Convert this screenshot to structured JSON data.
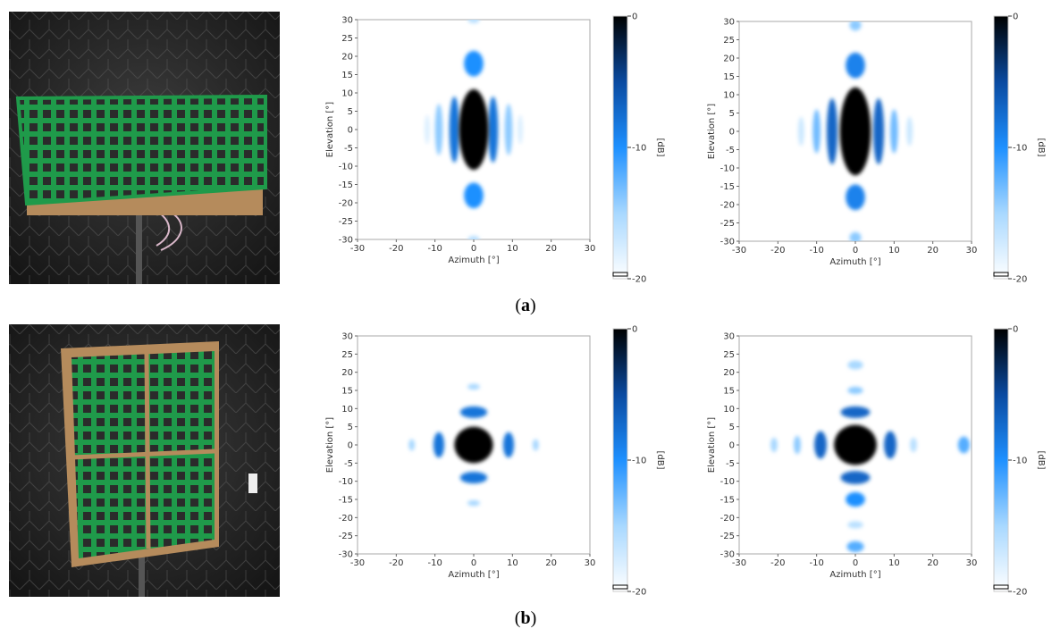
{
  "chart_data": [
    {
      "type": "heatmap",
      "xlabel": "Azimuth [°]",
      "ylabel": "Elevation [°]",
      "xlim": [
        -30,
        30
      ],
      "ylim": [
        -30,
        30
      ],
      "xticks": [
        -30,
        -20,
        -10,
        0,
        10,
        20,
        30
      ],
      "yticks": [
        -30,
        -25,
        -20,
        -15,
        -10,
        -5,
        0,
        5,
        10,
        15,
        20,
        25,
        30
      ],
      "clim": [
        -20,
        0
      ],
      "cticks": [
        0,
        -10,
        -20
      ],
      "clabel": "[dB]",
      "colormap": [
        "#ffffff",
        "#a8d8ff",
        "#1e90ff",
        "#0a4aa0",
        "#000000"
      ],
      "lobes": [
        {
          "x": 0,
          "y": 30,
          "sx": 1.5,
          "sy": 1,
          "value": -16
        },
        {
          "x": 0,
          "y": -30,
          "sx": 1.5,
          "sy": 1,
          "value": -16
        },
        {
          "x": -12,
          "y": 0,
          "sx": 0.7,
          "sy": 4,
          "value": -18
        },
        {
          "x": 12,
          "y": 0,
          "sx": 0.7,
          "sy": 4,
          "value": -18
        },
        {
          "x": -9,
          "y": 0,
          "sx": 1,
          "sy": 7,
          "value": -14
        },
        {
          "x": 9,
          "y": 0,
          "sx": 1,
          "sy": 7,
          "value": -14
        },
        {
          "x": 0,
          "y": 18,
          "sx": 2.5,
          "sy": 3.5,
          "value": -10
        },
        {
          "x": 0,
          "y": -18,
          "sx": 2.5,
          "sy": 3.5,
          "value": -10
        },
        {
          "x": -5,
          "y": 0,
          "sx": 1.3,
          "sy": 9,
          "value": -8
        },
        {
          "x": 5,
          "y": 0,
          "sx": 1.3,
          "sy": 9,
          "value": -8
        },
        {
          "x": 0,
          "y": 0,
          "sx": 3.8,
          "sy": 11,
          "value": 0
        }
      ]
    },
    {
      "type": "heatmap",
      "xlabel": "Azimuth [°]",
      "ylabel": "Elevation [°]",
      "xlim": [
        -30,
        30
      ],
      "ylim": [
        -30,
        30
      ],
      "xticks": [
        -30,
        -20,
        -10,
        0,
        10,
        20,
        30
      ],
      "yticks": [
        -30,
        -25,
        -20,
        -15,
        -10,
        -5,
        0,
        5,
        10,
        15,
        20,
        25,
        30
      ],
      "clim": [
        -20,
        0
      ],
      "cticks": [
        0,
        -10,
        -20
      ],
      "clabel": "[dB]",
      "colormap": [
        "#ffffff",
        "#a8d8ff",
        "#1e90ff",
        "#0a4aa0",
        "#000000"
      ],
      "lobes": [
        {
          "x": 0,
          "y": 29,
          "sx": 1.5,
          "sy": 1.5,
          "value": -14
        },
        {
          "x": 0,
          "y": -29,
          "sx": 1.5,
          "sy": 1.5,
          "value": -14
        },
        {
          "x": -14,
          "y": 0,
          "sx": 0.8,
          "sy": 4,
          "value": -17
        },
        {
          "x": 14,
          "y": 0,
          "sx": 0.8,
          "sy": 4,
          "value": -17
        },
        {
          "x": -10,
          "y": 0,
          "sx": 1,
          "sy": 6,
          "value": -13
        },
        {
          "x": 10,
          "y": 0,
          "sx": 1,
          "sy": 6,
          "value": -13
        },
        {
          "x": 0,
          "y": 18,
          "sx": 2.5,
          "sy": 3.5,
          "value": -9
        },
        {
          "x": 0,
          "y": -18,
          "sx": 2.5,
          "sy": 3.5,
          "value": -9
        },
        {
          "x": -6,
          "y": 0,
          "sx": 1.4,
          "sy": 9,
          "value": -7
        },
        {
          "x": 6,
          "y": 0,
          "sx": 1.4,
          "sy": 9,
          "value": -7
        },
        {
          "x": 0,
          "y": 0,
          "sx": 4,
          "sy": 12,
          "value": 0
        }
      ]
    },
    {
      "type": "heatmap",
      "xlabel": "Azimuth [°]",
      "ylabel": "Elevation [°]",
      "xlim": [
        -30,
        30
      ],
      "ylim": [
        -30,
        30
      ],
      "xticks": [
        -30,
        -20,
        -10,
        0,
        10,
        20,
        30
      ],
      "yticks": [
        -30,
        -25,
        -20,
        -15,
        -10,
        -5,
        0,
        5,
        10,
        15,
        20,
        25,
        30
      ],
      "clim": [
        -20,
        0
      ],
      "cticks": [
        0,
        -10,
        -20
      ],
      "clabel": "[dB]",
      "colormap": [
        "#ffffff",
        "#a8d8ff",
        "#1e90ff",
        "#0a4aa0",
        "#000000"
      ],
      "lobes": [
        {
          "x": -16,
          "y": 0,
          "sx": 0.8,
          "sy": 1.6,
          "value": -15
        },
        {
          "x": 16,
          "y": 0,
          "sx": 0.8,
          "sy": 1.6,
          "value": -15
        },
        {
          "x": 0,
          "y": 16,
          "sx": 1.6,
          "sy": 0.8,
          "value": -15
        },
        {
          "x": 0,
          "y": -16,
          "sx": 1.6,
          "sy": 0.8,
          "value": -15
        },
        {
          "x": -9,
          "y": 0,
          "sx": 1.4,
          "sy": 3.5,
          "value": -8
        },
        {
          "x": 9,
          "y": 0,
          "sx": 1.4,
          "sy": 3.5,
          "value": -8
        },
        {
          "x": 0,
          "y": 9,
          "sx": 3.5,
          "sy": 1.6,
          "value": -8
        },
        {
          "x": 0,
          "y": -9,
          "sx": 3.5,
          "sy": 1.6,
          "value": -8
        },
        {
          "x": 0,
          "y": 0,
          "sx": 5,
          "sy": 5,
          "value": 0
        }
      ]
    },
    {
      "type": "heatmap",
      "xlabel": "Azimuth [°]",
      "ylabel": "Elevation [°]",
      "xlim": [
        -30,
        30
      ],
      "ylim": [
        -30,
        30
      ],
      "xticks": [
        -30,
        -20,
        -10,
        0,
        10,
        20,
        30
      ],
      "yticks": [
        -30,
        -25,
        -20,
        -15,
        -10,
        -5,
        0,
        5,
        10,
        15,
        20,
        25,
        30
      ],
      "clim": [
        -20,
        0
      ],
      "cticks": [
        0,
        -10,
        -20
      ],
      "clabel": "[dB]",
      "colormap": [
        "#ffffff",
        "#a8d8ff",
        "#1e90ff",
        "#0a4aa0",
        "#000000"
      ],
      "lobes": [
        {
          "x": -21,
          "y": 0,
          "sx": 0.9,
          "sy": 2,
          "value": -15
        },
        {
          "x": -15,
          "y": 0,
          "sx": 0.9,
          "sy": 2.5,
          "value": -14
        },
        {
          "x": 15,
          "y": 0,
          "sx": 0.9,
          "sy": 2,
          "value": -16
        },
        {
          "x": 28,
          "y": 0,
          "sx": 1.5,
          "sy": 2.3,
          "value": -12
        },
        {
          "x": 0,
          "y": 22,
          "sx": 2,
          "sy": 1.2,
          "value": -15
        },
        {
          "x": 0,
          "y": 15,
          "sx": 2,
          "sy": 1,
          "value": -14
        },
        {
          "x": 0,
          "y": -15,
          "sx": 2.5,
          "sy": 2,
          "value": -10
        },
        {
          "x": 0,
          "y": -22,
          "sx": 2,
          "sy": 1,
          "value": -16
        },
        {
          "x": 0,
          "y": -28,
          "sx": 2.2,
          "sy": 1.5,
          "value": -12
        },
        {
          "x": -9,
          "y": 0,
          "sx": 1.6,
          "sy": 3.8,
          "value": -7
        },
        {
          "x": 9,
          "y": 0,
          "sx": 1.6,
          "sy": 3.8,
          "value": -7
        },
        {
          "x": 0,
          "y": 9,
          "sx": 3.8,
          "sy": 1.6,
          "value": -7
        },
        {
          "x": 0,
          "y": -9,
          "sx": 3.8,
          "sy": 1.8,
          "value": -7
        },
        {
          "x": 0,
          "y": 0,
          "sx": 5.5,
          "sy": 5.5,
          "value": 0
        }
      ]
    }
  ],
  "captions": [
    "a",
    "b"
  ]
}
